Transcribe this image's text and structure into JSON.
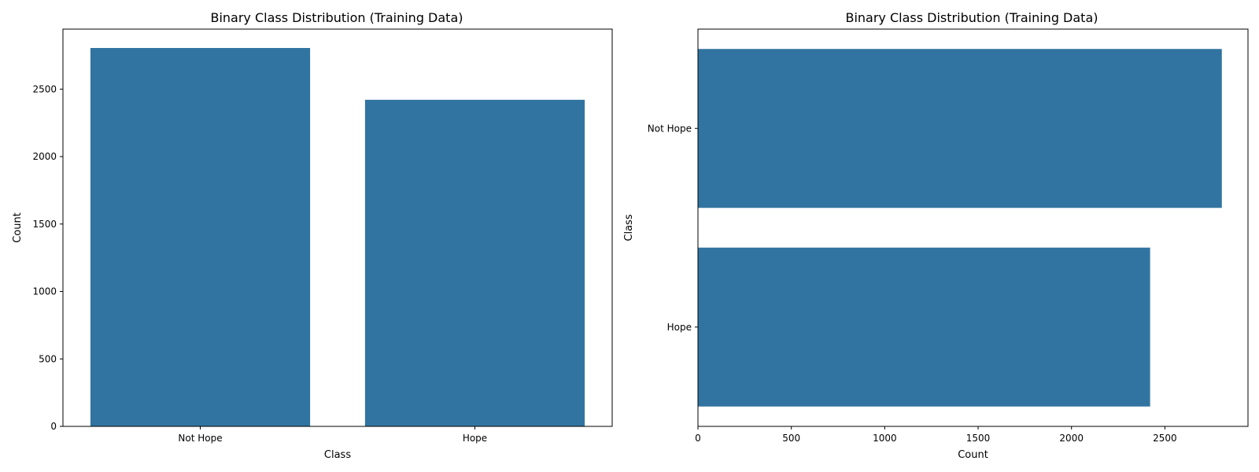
{
  "chart_data": [
    {
      "type": "bar",
      "orientation": "vertical",
      "title": "Binary Class Distribution (Training Data)",
      "xlabel": "Class",
      "ylabel": "Count",
      "categories": [
        "Not Hope",
        "Hope"
      ],
      "values": [
        2805,
        2421
      ],
      "ylim": [
        0,
        2945
      ],
      "yticks": [
        0,
        500,
        1000,
        1500,
        2000,
        2500
      ],
      "bar_color": "#3274a1",
      "grid": false,
      "legend": "none"
    },
    {
      "type": "bar",
      "orientation": "horizontal",
      "title": "Binary Class Distribution (Training Data)",
      "xlabel": "Count",
      "ylabel": "Class",
      "categories": [
        "Not Hope",
        "Hope"
      ],
      "values": [
        2805,
        2421
      ],
      "xlim": [
        0,
        2945
      ],
      "xticks": [
        0,
        500,
        1000,
        1500,
        2000,
        2500
      ],
      "bar_color": "#3274a1",
      "grid": false,
      "legend": "none"
    }
  ]
}
